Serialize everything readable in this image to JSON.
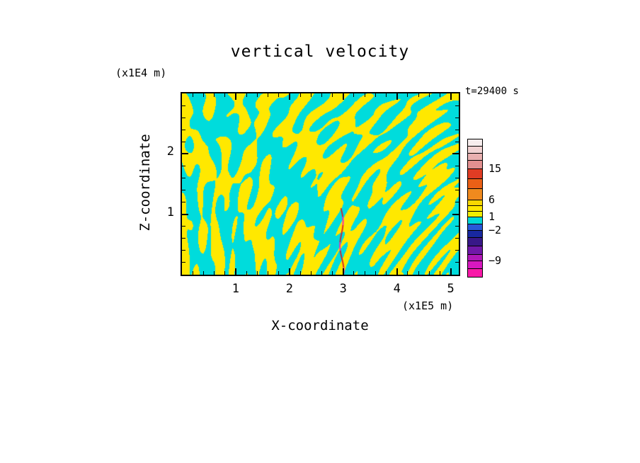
{
  "figure": {
    "title": "vertical velocity",
    "time_label": "t=29400 s",
    "x_axis": {
      "label": "X-coordinate",
      "unit": "(x1E5 m)"
    },
    "y_axis": {
      "label": "Z-coordinate",
      "unit": "(x1E4 m)"
    }
  },
  "chart_data": {
    "type": "heatmap",
    "title": "vertical velocity",
    "time_annotation": "t=29400 s",
    "xlabel": "X-coordinate",
    "x_unit": "(x1E5 m)",
    "x_ticks": [
      1,
      2,
      3,
      4,
      5
    ],
    "x_minor_step": 0.2,
    "xlim": [
      0,
      5.15
    ],
    "ylabel": "Z-coordinate",
    "y_unit": "(x1E4 m)",
    "y_ticks": [
      2,
      1
    ],
    "y_minor_step": 0.2,
    "ylim": [
      0,
      3
    ],
    "grid": false,
    "legend_position": "right-colorbar",
    "field": {
      "positive_color": "#ffe800",
      "negative_color": "#00dcdc",
      "description": "turbulent field of interleaved yellow (positive) and cyan (negative) vertical-velocity cells, coarser aloft and finer streakier near the bottom; a thin red/magenta plume rises at x≈2.95 up to z≈1.1",
      "plume": {
        "x": 2.95,
        "z_top": 1.1,
        "colors": [
          "#d81828",
          "#f020c0"
        ]
      }
    },
    "colorbar": {
      "tick_values": [
        15,
        6,
        1,
        -2,
        -9
      ],
      "labels": [
        {
          "text": "15",
          "at": 42
        },
        {
          "text": "6",
          "at": 86
        },
        {
          "text": "1",
          "at": 110
        },
        {
          "text": "−2",
          "at": 129
        },
        {
          "text": "−9",
          "at": 172
        }
      ],
      "segments": [
        {
          "c": "#f7eded",
          "h": 10
        },
        {
          "c": "#f1d2d2",
          "h": 10
        },
        {
          "c": "#e9b0b0",
          "h": 10
        },
        {
          "c": "#e39090",
          "h": 12
        },
        {
          "c": "#e03c24",
          "h": 14
        },
        {
          "c": "#ea6016",
          "h": 14
        },
        {
          "c": "#f08a1e",
          "h": 16
        },
        {
          "c": "#f8d800",
          "h": 8
        },
        {
          "c": "#ffe800",
          "h": 8
        },
        {
          "c": "#f0ee00",
          "h": 8
        },
        {
          "c": "#00d8d8",
          "h": 10
        },
        {
          "c": "#2858d8",
          "h": 9
        },
        {
          "c": "#1828a0",
          "h": 10
        },
        {
          "c": "#381888",
          "h": 12
        },
        {
          "c": "#7018a8",
          "h": 12
        },
        {
          "c": "#b018b8",
          "h": 9
        },
        {
          "c": "#d818c0",
          "h": 11
        },
        {
          "c": "#f818a8",
          "h": 11
        }
      ]
    }
  }
}
